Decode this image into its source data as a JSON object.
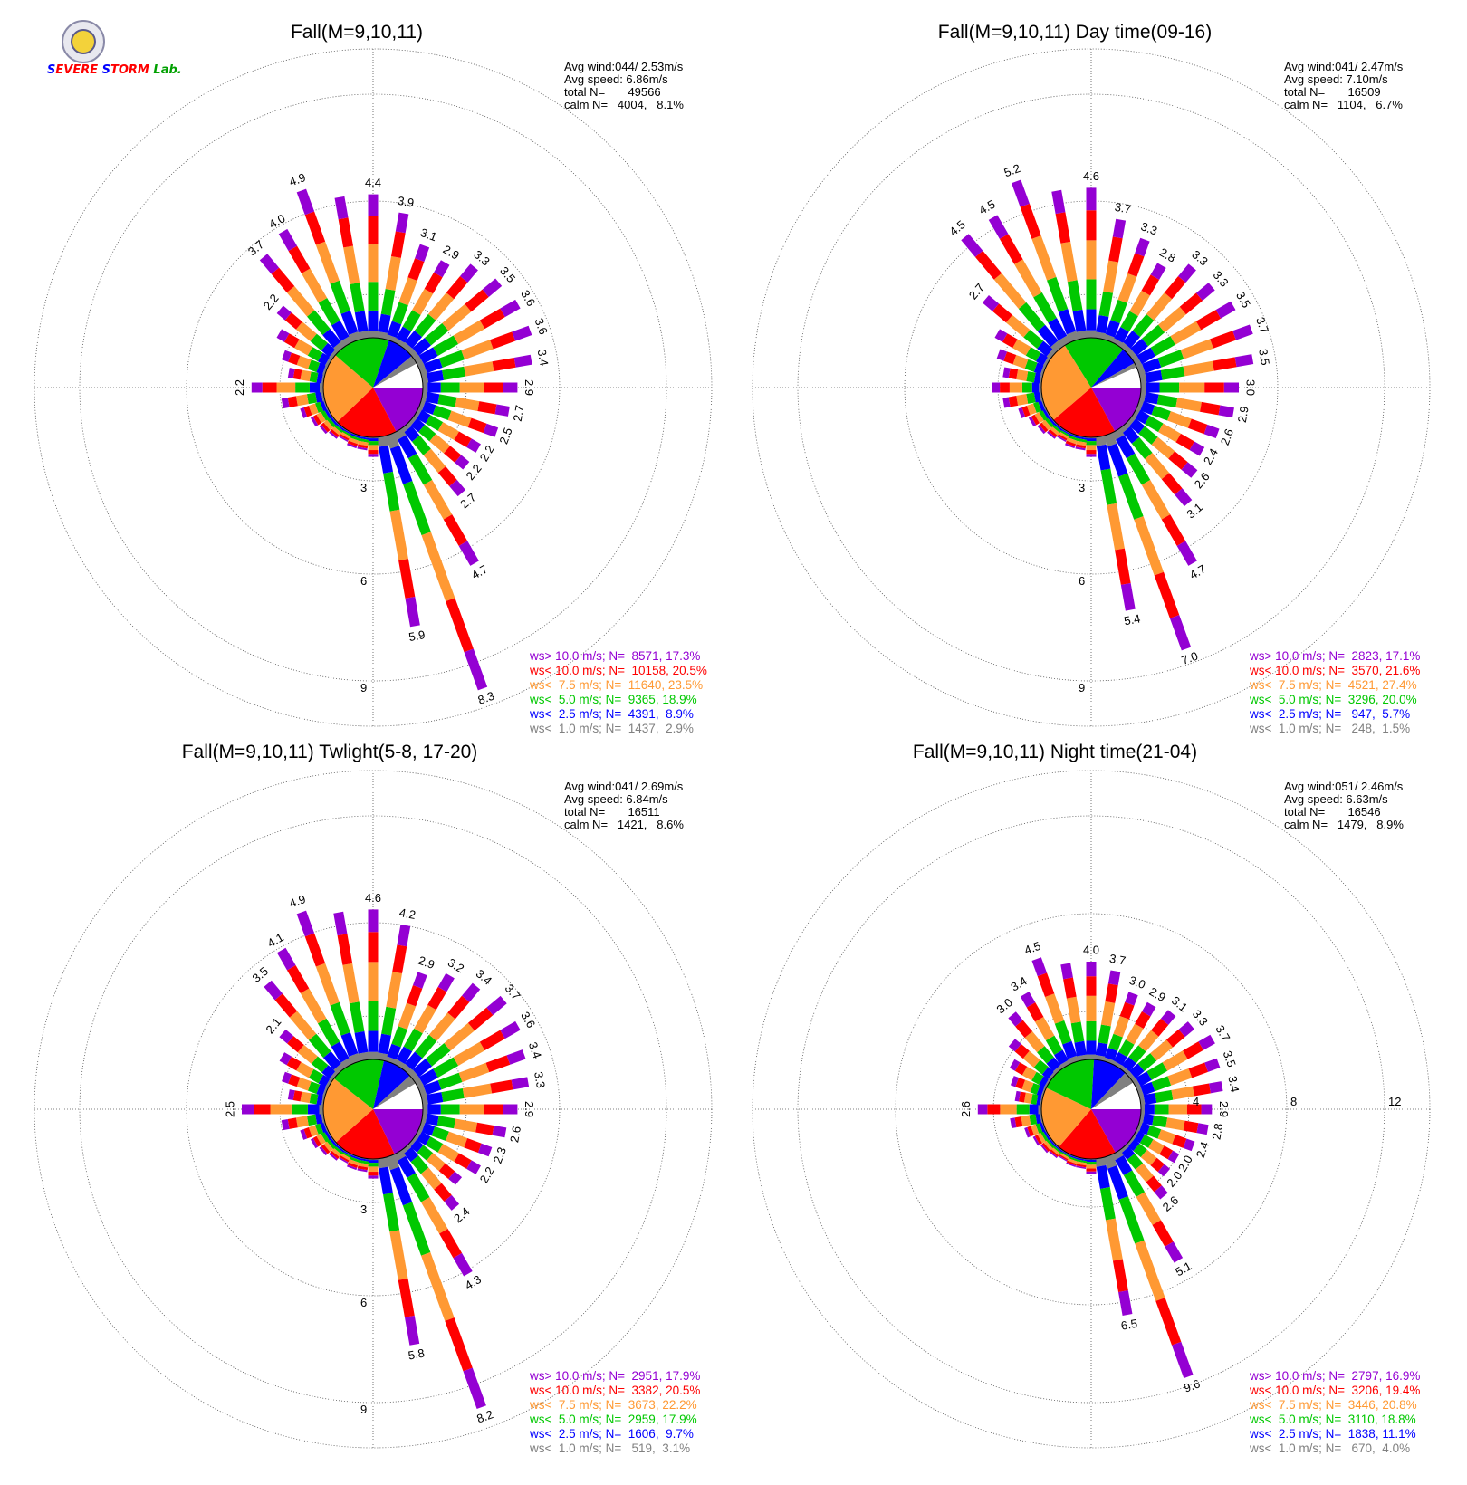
{
  "logo": {
    "text": "Severe Storm Lab."
  },
  "colors": {
    "gt10": "#9400d3",
    "lt10": "#ff0000",
    "lt7_5": "#ff9933",
    "lt5": "#00c800",
    "lt2_5": "#0000ff",
    "lt1": "#808080",
    "grid": "#555555",
    "text": "#000000"
  },
  "chart_data": [
    {
      "type": "wind-rose",
      "title": "Fall(M=9,10,11)",
      "stats": [
        "Avg wind:044/ 2.53m/s",
        "Avg speed: 6.86m/s",
        "total N=       49566",
        "calm N=   4004,   8.1%"
      ],
      "ring_labels": [
        "3",
        "6",
        "9"
      ],
      "rmax": 9,
      "directions_deg": [
        0,
        10,
        20,
        30,
        40,
        50,
        60,
        70,
        80,
        90,
        100,
        110,
        120,
        130,
        140,
        150,
        160,
        170,
        180,
        190,
        200,
        210,
        220,
        230,
        240,
        250,
        260,
        270,
        280,
        290,
        300,
        310,
        320,
        330,
        340,
        350
      ],
      "totals": [
        4.4,
        3.9,
        3.1,
        2.9,
        3.3,
        3.5,
        3.6,
        3.6,
        3.4,
        2.9,
        2.7,
        2.5,
        2.2,
        2.2,
        2.7,
        4.7,
        8.3,
        5.9,
        0.6,
        0.4,
        0.4,
        0.3,
        0.4,
        0.5,
        0.6,
        0.8,
        1.3,
        2.2,
        1.1,
        1.4,
        1.8,
        2.2,
        3.7,
        4.0,
        4.9,
        4.4
      ],
      "labels": [
        "4.4",
        "3.9",
        "3.1",
        "2.9",
        "3.3",
        "3.5",
        "3.6",
        "3.6",
        "3.4",
        "2.9",
        "2.7",
        "2.5",
        "2.2",
        "2.2",
        "2.7",
        "4.7",
        "8.3",
        "5.9",
        "",
        "",
        "",
        "",
        "",
        "",
        "",
        "",
        "",
        "2.2",
        "",
        "",
        "",
        "2.2",
        "3.7",
        "4.0",
        "4.9",
        ""
      ],
      "pie": [
        17.3,
        20.5,
        23.5,
        18.9,
        8.9,
        2.9
      ],
      "legend": [
        "ws> 10.0 m/s; N=  8571, 17.3%",
        "ws< 10.0 m/s; N=  10158, 20.5%",
        "ws<  7.5 m/s; N=  11640, 23.5%",
        "ws<  5.0 m/s; N=  9365, 18.9%",
        "ws<  2.5 m/s; N=  4391,  8.9%",
        "ws<  1.0 m/s; N=  1437,  2.9%"
      ]
    },
    {
      "type": "wind-rose",
      "title": "Fall(M=9,10,11) Day time(09-16)",
      "stats": [
        "Avg wind:041/ 2.47m/s",
        "Avg speed: 7.10m/s",
        "total N=       16509",
        "calm N=   1104,   6.7%"
      ],
      "ring_labels": [
        "3",
        "6",
        "9"
      ],
      "rmax": 9,
      "directions_deg": [
        0,
        10,
        20,
        30,
        40,
        50,
        60,
        70,
        80,
        90,
        100,
        110,
        120,
        130,
        140,
        150,
        160,
        170,
        180,
        190,
        200,
        210,
        220,
        230,
        240,
        250,
        260,
        270,
        280,
        290,
        300,
        310,
        320,
        330,
        340,
        350
      ],
      "totals": [
        4.6,
        3.7,
        3.3,
        2.8,
        3.3,
        3.3,
        3.5,
        3.7,
        3.5,
        3.0,
        2.9,
        2.6,
        2.4,
        2.6,
        3.1,
        4.7,
        7.0,
        5.4,
        0.6,
        0.4,
        0.4,
        0.3,
        0.4,
        0.5,
        0.6,
        0.8,
        1.2,
        1.5,
        1.2,
        1.5,
        1.8,
        2.7,
        4.5,
        4.5,
        5.2,
        4.6
      ],
      "labels": [
        "4.6",
        "3.7",
        "3.3",
        "2.8",
        "3.3",
        "3.3",
        "3.5",
        "3.7",
        "3.5",
        "3.0",
        "2.9",
        "2.6",
        "2.4",
        "2.6",
        "3.1",
        "4.7",
        "7.0",
        "5.4",
        "",
        "",
        "",
        "",
        "",
        "",
        "",
        "",
        "",
        "",
        "",
        "",
        "",
        "2.7",
        "4.5",
        "4.5",
        "5.2",
        ""
      ],
      "pie": [
        17.1,
        21.6,
        27.4,
        20.0,
        5.7,
        1.5
      ],
      "legend": [
        "ws> 10.0 m/s; N=  2823, 17.1%",
        "ws< 10.0 m/s; N=  3570, 21.6%",
        "ws<  7.5 m/s; N=  4521, 27.4%",
        "ws<  5.0 m/s; N=  3296, 20.0%",
        "ws<  2.5 m/s; N=   947,  5.7%",
        "ws<  1.0 m/s; N=   248,  1.5%"
      ]
    },
    {
      "type": "wind-rose",
      "title": "Fall(M=9,10,11) Twlight(5-8, 17-20)",
      "stats": [
        "Avg wind:041/ 2.69m/s",
        "Avg speed: 6.84m/s",
        "total N=       16511",
        "calm N=   1421,   8.6%"
      ],
      "ring_labels": [
        "3",
        "6",
        "9"
      ],
      "rmax": 9,
      "directions_deg": [
        0,
        10,
        20,
        30,
        40,
        50,
        60,
        70,
        80,
        90,
        100,
        110,
        120,
        130,
        140,
        150,
        160,
        170,
        180,
        190,
        200,
        210,
        220,
        230,
        240,
        250,
        260,
        270,
        280,
        290,
        300,
        310,
        320,
        330,
        340,
        350
      ],
      "totals": [
        4.6,
        4.2,
        2.9,
        3.2,
        3.4,
        3.7,
        3.6,
        3.4,
        3.3,
        2.9,
        2.6,
        2.3,
        2.2,
        1.9,
        2.4,
        4.3,
        8.2,
        5.8,
        0.6,
        0.4,
        0.4,
        0.3,
        0.4,
        0.5,
        0.6,
        0.8,
        1.3,
        2.5,
        1.1,
        1.4,
        1.7,
        2.1,
        3.5,
        4.1,
        4.9,
        4.6
      ],
      "labels": [
        "4.6",
        "4.2",
        "2.9",
        "3.2",
        "3.4",
        "3.7",
        "3.6",
        "3.4",
        "3.3",
        "2.9",
        "2.6",
        "2.3",
        "2.2",
        "",
        "2.4",
        "4.3",
        "8.2",
        "5.8",
        "",
        "",
        "",
        "",
        "",
        "",
        "",
        "",
        "",
        "2.5",
        "",
        "",
        "",
        "2.1",
        "3.5",
        "4.1",
        "4.9",
        ""
      ],
      "pie": [
        17.9,
        20.5,
        22.2,
        17.9,
        9.7,
        3.1
      ],
      "legend": [
        "ws> 10.0 m/s; N=  2951, 17.9%",
        "ws< 10.0 m/s; N=  3382, 20.5%",
        "ws<  7.5 m/s; N=  3673, 22.2%",
        "ws<  5.0 m/s; N=  2959, 17.9%",
        "ws<  2.5 m/s; N=  1606,  9.7%",
        "ws<  1.0 m/s; N=   519,  3.1%"
      ]
    },
    {
      "type": "wind-rose",
      "title": "Fall(M=9,10,11) Night time(21-04)",
      "stats": [
        "Avg wind:051/ 2.46m/s",
        "Avg speed: 6.63m/s",
        "total N=       16546",
        "calm N=   1479,   8.9%"
      ],
      "ring_labels": [
        "4",
        "8",
        "12"
      ],
      "rmax": 12,
      "directions_deg": [
        0,
        10,
        20,
        30,
        40,
        50,
        60,
        70,
        80,
        90,
        100,
        110,
        120,
        130,
        140,
        150,
        160,
        170,
        180,
        190,
        200,
        210,
        220,
        230,
        240,
        250,
        260,
        270,
        280,
        290,
        300,
        310,
        320,
        330,
        340,
        350
      ],
      "totals": [
        4.0,
        3.7,
        3.0,
        2.9,
        3.1,
        3.3,
        3.7,
        3.5,
        3.4,
        2.9,
        2.8,
        2.4,
        2.0,
        2.0,
        2.6,
        5.1,
        9.6,
        6.5,
        0.6,
        0.4,
        0.4,
        0.3,
        0.4,
        0.5,
        0.6,
        0.8,
        1.3,
        2.6,
        1.1,
        1.4,
        1.7,
        2.2,
        3.0,
        3.4,
        4.5,
        4.0
      ],
      "labels": [
        "4.0",
        "3.7",
        "3.0",
        "2.9",
        "3.1",
        "3.3",
        "3.7",
        "3.5",
        "3.4",
        "2.9",
        "2.8",
        "2.4",
        "2.0",
        "2.0",
        "2.6",
        "5.1",
        "9.6",
        "6.5",
        "",
        "",
        "",
        "",
        "",
        "",
        "",
        "",
        "",
        "2.6",
        "",
        "",
        "",
        "",
        "3.0",
        "3.4",
        "4.5",
        ""
      ],
      "pie": [
        16.9,
        19.4,
        20.8,
        18.8,
        11.1,
        4.0
      ],
      "legend": [
        "ws> 10.0 m/s; N=  2797, 16.9%",
        "ws< 10.0 m/s; N=  3206, 19.4%",
        "ws<  7.5 m/s; N=  3446, 20.8%",
        "ws<  5.0 m/s; N=  3110, 18.8%",
        "ws<  2.5 m/s; N=  1838, 11.1%",
        "ws<  1.0 m/s; N=   670,  4.0%"
      ]
    }
  ]
}
